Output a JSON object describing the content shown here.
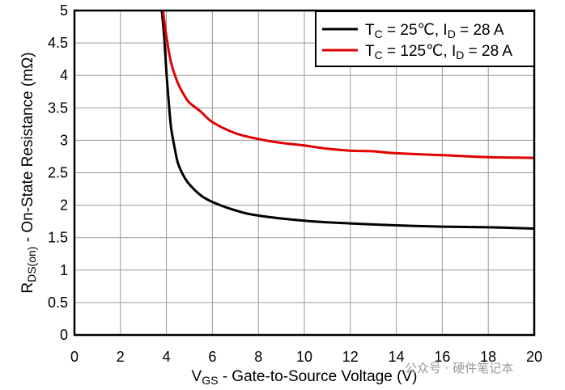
{
  "chart_data": {
    "type": "line",
    "xlabel": {
      "main": "V",
      "sub": "GS",
      "rest": " - Gate-to-Source Voltage (V)"
    },
    "ylabel": {
      "main": "R",
      "sub": "DS(on)",
      "rest": " - On-State Resistance (mΩ)"
    },
    "xlim": [
      0,
      20
    ],
    "ylim": [
      0,
      5
    ],
    "xticks": [
      "0",
      "2",
      "4",
      "6",
      "8",
      "10",
      "12",
      "14",
      "16",
      "18",
      "20"
    ],
    "yticks": [
      "0",
      "0.5",
      "1",
      "1.5",
      "2",
      "2.5",
      "3",
      "3.5",
      "4",
      "4.5",
      "5"
    ],
    "grid": true,
    "legend_position": "top-right",
    "series": [
      {
        "name": "T_C = 25℃, I_D = 28 A",
        "legend": {
          "t": "T",
          "tsub": "C",
          "mid": " = 25℃, I",
          "isub": "D",
          "end": " = 28 A"
        },
        "color": "#000000",
        "x": [
          3.8,
          3.9,
          4.0,
          4.1,
          4.2,
          4.35,
          4.5,
          4.75,
          5.0,
          5.5,
          6.0,
          7.0,
          8.0,
          10.0,
          12.0,
          14.0,
          16.0,
          18.0,
          20.0
        ],
        "y": [
          5.0,
          4.6,
          4.05,
          3.6,
          3.2,
          2.9,
          2.65,
          2.45,
          2.32,
          2.15,
          2.05,
          1.92,
          1.84,
          1.76,
          1.72,
          1.69,
          1.67,
          1.66,
          1.64
        ]
      },
      {
        "name": "T_C = 125℃, I_D = 28 A",
        "legend": {
          "t": "T",
          "tsub": "C",
          "mid": " = 125℃, I",
          "isub": "D",
          "end": " = 28 A"
        },
        "color": "#e00000",
        "x": [
          3.85,
          4.0,
          4.2,
          4.5,
          4.8,
          5.0,
          5.5,
          6.0,
          7.0,
          8.0,
          9.0,
          10.0,
          11.0,
          12.0,
          13.0,
          14.0,
          16.0,
          18.0,
          20.0
        ],
        "y": [
          5.0,
          4.6,
          4.2,
          3.88,
          3.68,
          3.58,
          3.44,
          3.28,
          3.11,
          3.02,
          2.96,
          2.92,
          2.87,
          2.84,
          2.83,
          2.8,
          2.77,
          2.74,
          2.73
        ]
      }
    ]
  },
  "watermark": "公众号 · 硬件笔记本"
}
